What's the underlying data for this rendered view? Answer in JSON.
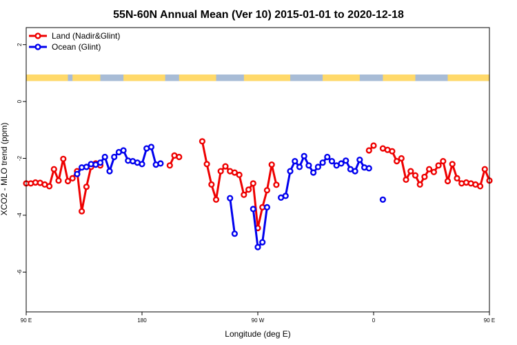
{
  "chart_data": {
    "type": "line",
    "title": "55N-60N Annual Mean (Ver 10)   2015-01-01 to 2020-12-18",
    "xlabel": "Longitude (deg E)",
    "ylabel": "XCO2 - MLO trend (ppm)",
    "xlim": [
      90,
      450
    ],
    "ylim": [
      -7.4,
      2.6
    ],
    "x_ticks": [
      {
        "value": 90,
        "label": "90 E"
      },
      {
        "value": 180,
        "label": "180"
      },
      {
        "value": 270,
        "label": "90 W"
      },
      {
        "value": 360,
        "label": "0"
      },
      {
        "value": 450,
        "label": "90 E"
      },
      {
        "value": 540,
        "label": "180"
      }
    ],
    "y_ticks": [
      2,
      0,
      -2,
      -4,
      -6
    ],
    "legend_position": "top-left",
    "map_strip": {
      "y_top": 0.95,
      "y_bottom": 0.72,
      "land_color": "#FFD96A",
      "ocean_color": "#A8BCD6"
    },
    "series": [
      {
        "name": "Land (Nadir&Glint)",
        "color": "#EE0000",
        "segments": [
          [
            [
              90,
              -2.88
            ],
            [
              93.6,
              -2.88
            ],
            [
              97.2,
              -2.85
            ],
            [
              100.8,
              -2.86
            ],
            [
              104.4,
              -2.92
            ],
            [
              108,
              -2.98
            ],
            [
              111.6,
              -2.38
            ],
            [
              115.2,
              -2.78
            ],
            [
              118.8,
              -2.02
            ],
            [
              122.4,
              -2.8
            ],
            [
              126,
              -2.7
            ],
            [
              129.6,
              -2.45
            ],
            [
              133.2,
              -3.86
            ],
            [
              136.8,
              -3.0
            ],
            [
              140.4,
              -2.3
            ],
            [
              144,
              -2.18
            ],
            [
              147.6,
              -2.25
            ]
          ],
          [
            [
              201.6,
              -2.25
            ],
            [
              205.2,
              -1.9
            ],
            [
              208.8,
              -1.95
            ]
          ],
          [
            [
              226.8,
              -1.4
            ],
            [
              230.4,
              -2.2
            ],
            [
              234,
              -2.92
            ],
            [
              237.6,
              -3.45
            ],
            [
              241.2,
              -2.45
            ],
            [
              244.8,
              -2.28
            ],
            [
              248.4,
              -2.45
            ],
            [
              252,
              -2.5
            ],
            [
              255.6,
              -2.58
            ],
            [
              259.2,
              -3.28
            ],
            [
              262.8,
              -3.1
            ],
            [
              266.4,
              -2.88
            ],
            [
              270,
              -4.45
            ],
            [
              273.6,
              -3.72
            ],
            [
              277.2,
              -3.12
            ],
            [
              280.8,
              -2.22
            ],
            [
              284.4,
              -2.93
            ]
          ],
          [
            [
              356.4,
              -1.72
            ],
            [
              360,
              -1.55
            ]
          ],
          [
            [
              367.2,
              -1.65
            ],
            [
              370.8,
              -1.7
            ],
            [
              374.4,
              -1.75
            ],
            [
              378,
              -2.1
            ],
            [
              381.6,
              -2.0
            ],
            [
              385.2,
              -2.75
            ],
            [
              388.8,
              -2.45
            ],
            [
              392.4,
              -2.6
            ],
            [
              396,
              -2.92
            ],
            [
              399.6,
              -2.65
            ],
            [
              403.2,
              -2.38
            ],
            [
              406.8,
              -2.48
            ],
            [
              410.4,
              -2.25
            ],
            [
              414,
              -2.1
            ],
            [
              417.6,
              -2.8
            ],
            [
              421.2,
              -2.2
            ],
            [
              424.8,
              -2.7
            ],
            [
              428.4,
              -2.88
            ],
            [
              432,
              -2.85
            ],
            [
              435.6,
              -2.88
            ],
            [
              439.2,
              -2.92
            ],
            [
              442.8,
              -2.98
            ],
            [
              446.4,
              -2.38
            ],
            [
              450,
              -2.78
            ]
          ]
        ]
      },
      {
        "name": "Ocean (Glint)",
        "color": "#0000EE",
        "segments": [
          [
            [
              129.6,
              -2.55
            ],
            [
              133.2,
              -2.32
            ],
            [
              136.8,
              -2.3
            ],
            [
              140.4,
              -2.2
            ],
            [
              144,
              -2.22
            ],
            [
              147.6,
              -2.15
            ],
            [
              151.2,
              -1.95
            ],
            [
              154.8,
              -2.45
            ],
            [
              158.4,
              -1.95
            ],
            [
              162,
              -1.78
            ],
            [
              165.6,
              -1.72
            ],
            [
              169.2,
              -2.08
            ],
            [
              172.8,
              -2.1
            ],
            [
              176.4,
              -2.15
            ],
            [
              180,
              -2.2
            ],
            [
              183.6,
              -1.65
            ],
            [
              187.2,
              -1.6
            ],
            [
              190.8,
              -2.22
            ],
            [
              194.4,
              -2.18
            ]
          ],
          [
            [
              248.4,
              -3.4
            ],
            [
              252,
              -4.65
            ]
          ],
          [
            [
              266.4,
              -3.78
            ],
            [
              270,
              -5.12
            ],
            [
              273.6,
              -4.95
            ],
            [
              277.2,
              -3.72
            ]
          ],
          [
            [
              288,
              -3.38
            ],
            [
              291.6,
              -3.32
            ],
            [
              295.2,
              -2.45
            ],
            [
              298.8,
              -2.1
            ],
            [
              302.4,
              -2.3
            ],
            [
              306,
              -1.92
            ],
            [
              309.6,
              -2.25
            ],
            [
              313.2,
              -2.5
            ],
            [
              316.8,
              -2.3
            ],
            [
              320.4,
              -2.15
            ],
            [
              324,
              -1.95
            ],
            [
              327.6,
              -2.1
            ],
            [
              331.2,
              -2.25
            ],
            [
              334.8,
              -2.18
            ],
            [
              338.4,
              -2.08
            ],
            [
              342,
              -2.38
            ],
            [
              345.6,
              -2.45
            ],
            [
              349.2,
              -2.05
            ],
            [
              352.8,
              -2.32
            ],
            [
              356.4,
              -2.35
            ]
          ],
          [
            [
              367.2,
              -3.45
            ]
          ]
        ]
      }
    ]
  }
}
